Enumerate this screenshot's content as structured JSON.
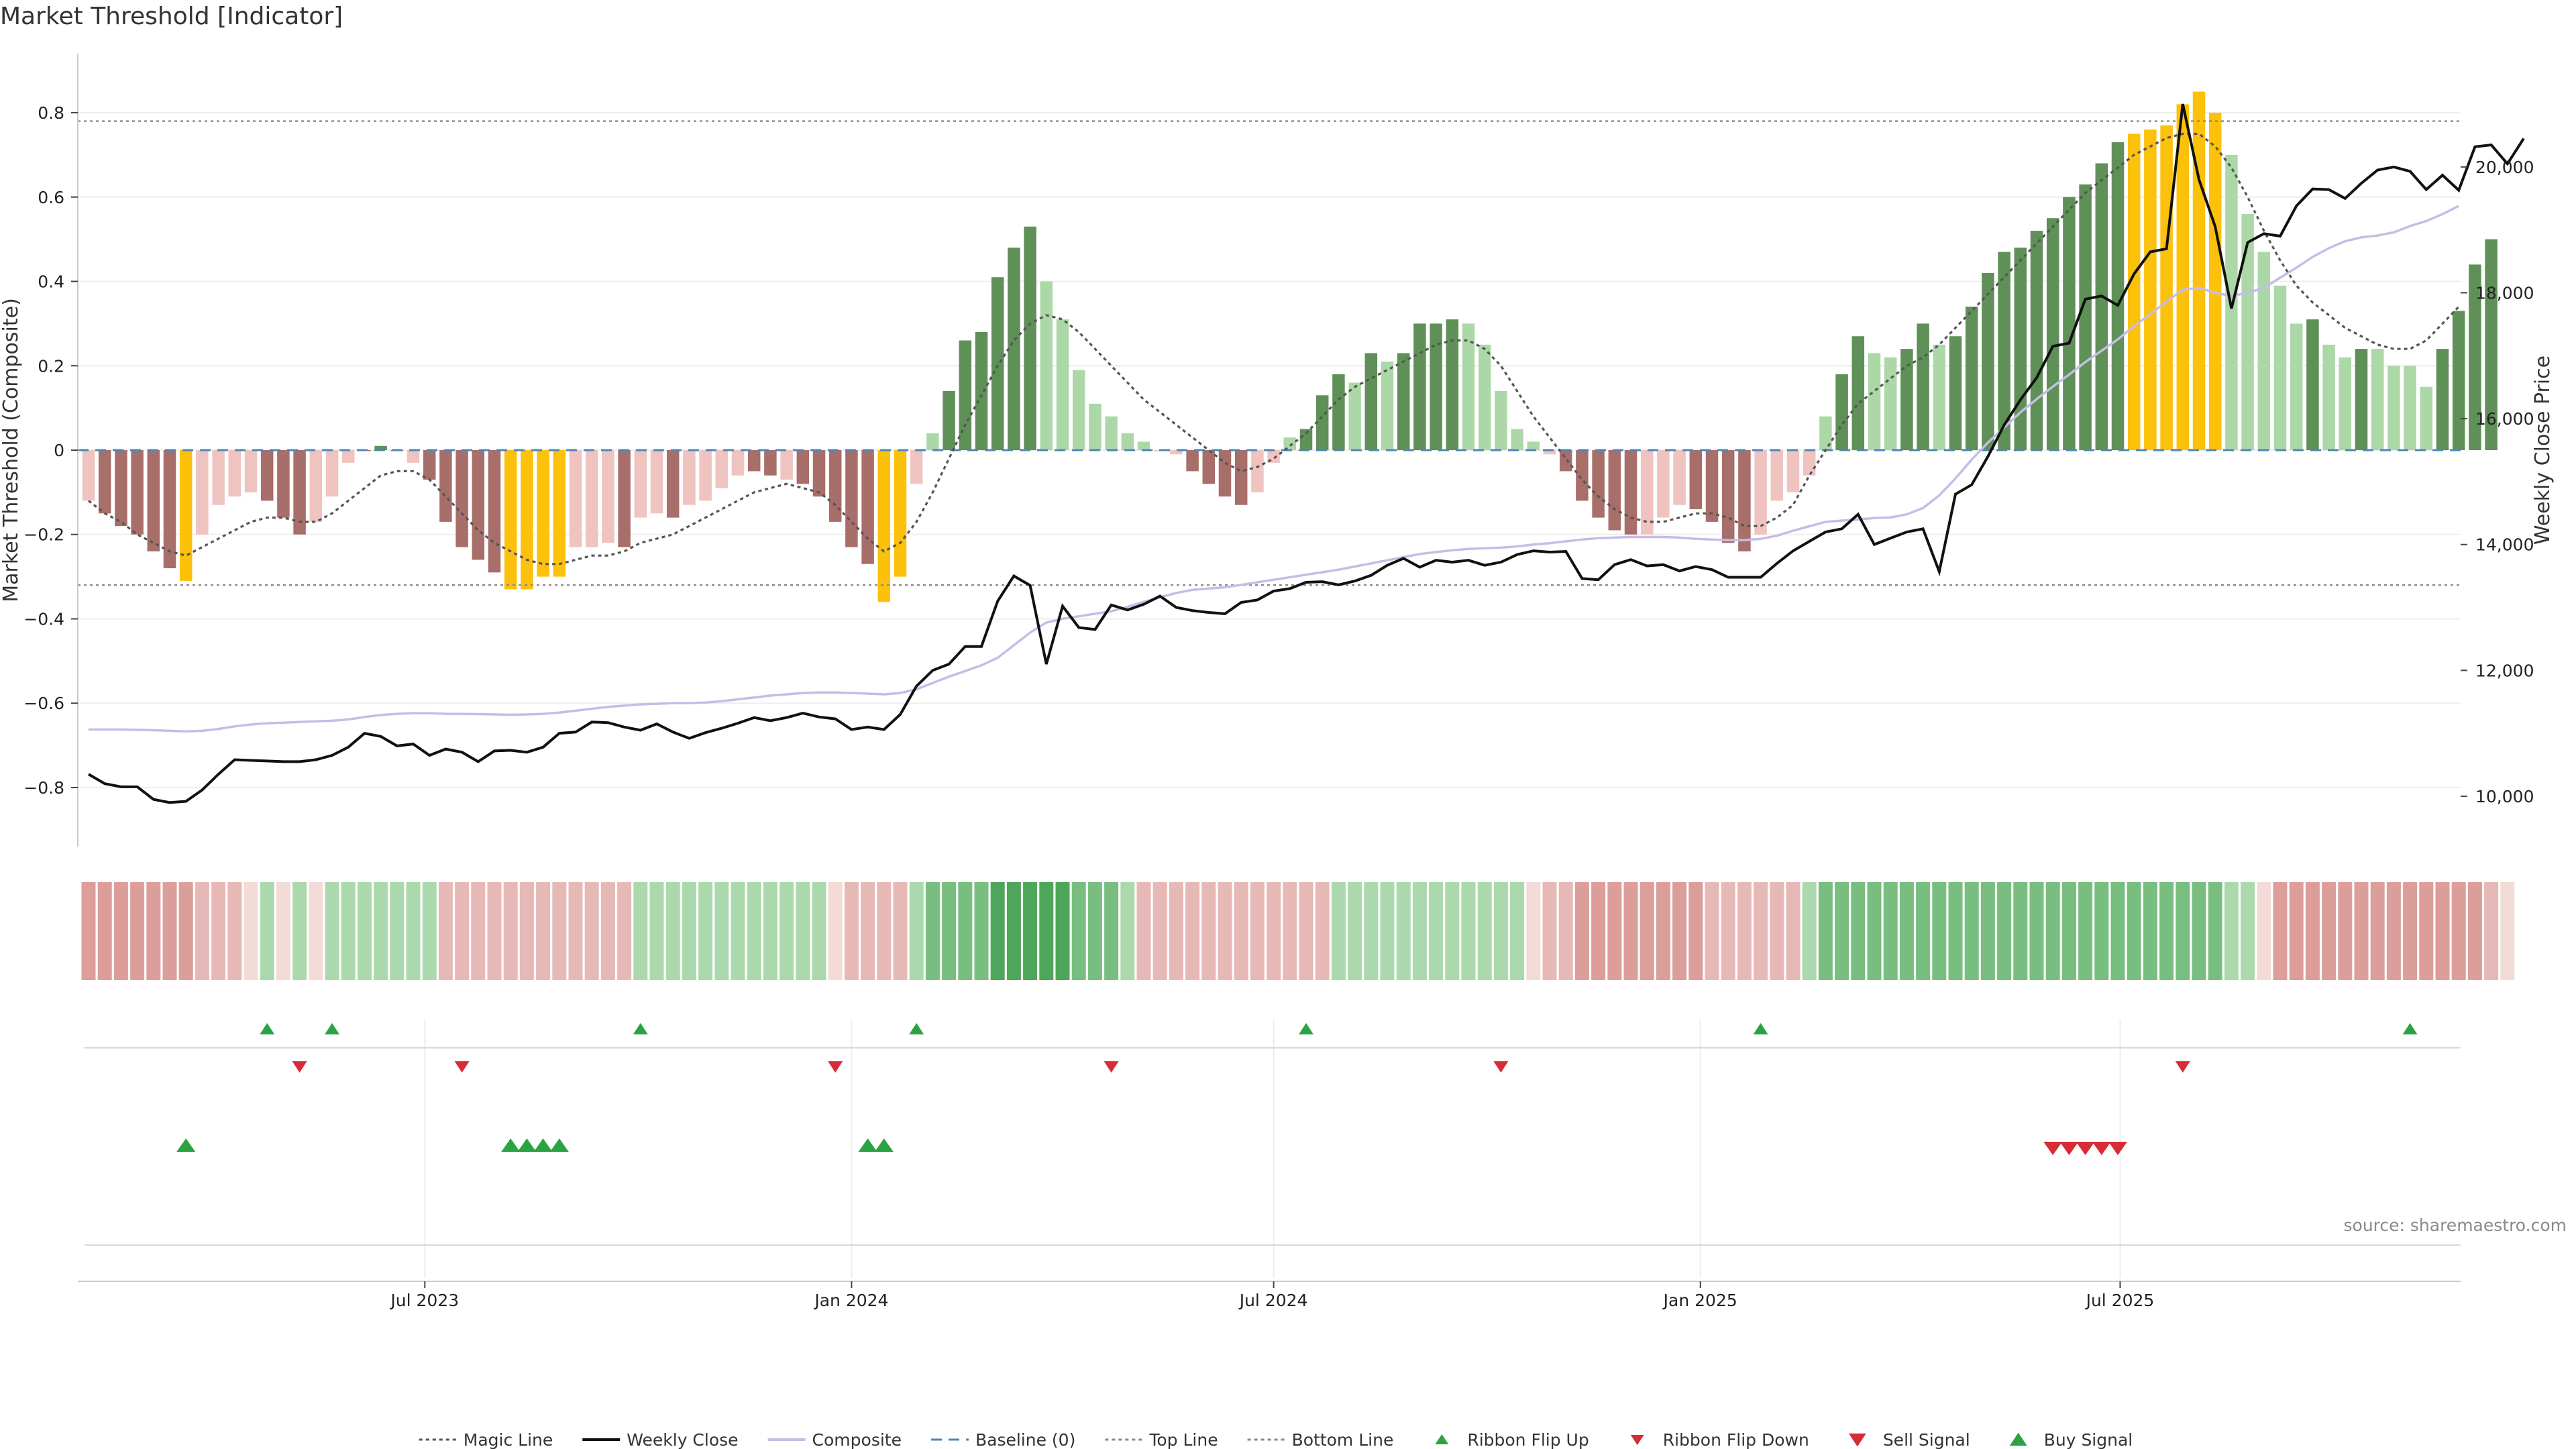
{
  "title": "Market Threshold [Indicator]",
  "source": "source: sharemaestro.com",
  "colors": {
    "bar_weak_neg": "#efc4c0",
    "bar_strong_neg": "#a86e6a",
    "bar_weak_pos": "#acd8a8",
    "bar_strong_pos": "#5e9057",
    "bar_extreme": "#fcc10b",
    "weekly_close": "#111111",
    "composite": "#c5bde6",
    "magic_line": "#555555",
    "baseline": "#4f86b8",
    "threshold_lines": "#8a8a8a",
    "signal_up": "#2ca342",
    "signal_down": "#d62c37"
  },
  "chart_data": {
    "type": "bar",
    "x_start": "2023-02-06",
    "x_step_days": 7,
    "xlabel": "",
    "ylabel_left": "Market Threshold (Composite)",
    "ylabel_right": "Weekly Close Price",
    "ylim_left": [
      -0.94,
      0.94
    ],
    "ylim_right": [
      9200,
      21800
    ],
    "left_ticks": [
      "0.8",
      "0.6",
      "0.4",
      "0.2",
      "0",
      "−0.2",
      "−0.4",
      "−0.6",
      "−0.8"
    ],
    "left_tick_values": [
      0.8,
      0.6,
      0.4,
      0.2,
      0,
      -0.2,
      -0.4,
      -0.6,
      -0.8
    ],
    "right_ticks": [
      "20,000",
      "18,000",
      "16,000",
      "14,000",
      "12,000",
      "10,000"
    ],
    "right_tick_values": [
      20000,
      18000,
      16000,
      14000,
      12000,
      10000
    ],
    "x_ticks": [
      {
        "label": "Jul 2023",
        "date": "2023-07-01"
      },
      {
        "label": "Jan 2024",
        "date": "2024-01-01"
      },
      {
        "label": "Jul 2024",
        "date": "2024-07-01"
      },
      {
        "label": "Jan 2025",
        "date": "2025-01-01"
      },
      {
        "label": "Jul 2025",
        "date": "2025-07-01"
      }
    ],
    "top_line": 0.78,
    "bottom_line": -0.32,
    "composite_bars": [
      -0.12,
      -0.15,
      -0.18,
      -0.2,
      -0.24,
      -0.28,
      -0.31,
      -0.2,
      -0.13,
      -0.11,
      -0.1,
      -0.12,
      -0.16,
      -0.2,
      -0.17,
      -0.11,
      -0.03,
      0,
      0.01,
      0,
      -0.03,
      -0.07,
      -0.17,
      -0.23,
      -0.26,
      -0.29,
      -0.33,
      -0.33,
      -0.3,
      -0.3,
      -0.23,
      -0.23,
      -0.22,
      -0.23,
      -0.16,
      -0.15,
      -0.16,
      -0.13,
      -0.12,
      -0.09,
      -0.06,
      -0.05,
      -0.06,
      -0.07,
      -0.08,
      -0.11,
      -0.17,
      -0.23,
      -0.27,
      -0.36,
      -0.3,
      -0.08,
      0.04,
      0.14,
      0.26,
      0.28,
      0.41,
      0.48,
      0.53,
      0.4,
      0.31,
      0.19,
      0.11,
      0.08,
      0.04,
      0.02,
      0,
      -0.01,
      -0.05,
      -0.08,
      -0.11,
      -0.13,
      -0.1,
      -0.03,
      0.03,
      0.05,
      0.13,
      0.18,
      0.16,
      0.23,
      0.21,
      0.23,
      0.3,
      0.3,
      0.31,
      0.3,
      0.25,
      0.14,
      0.05,
      0.02,
      -0.01,
      -0.05,
      -0.12,
      -0.16,
      -0.19,
      -0.2,
      -0.2,
      -0.16,
      -0.13,
      -0.14,
      -0.17,
      -0.22,
      -0.24,
      -0.2,
      -0.12,
      -0.1,
      -0.06,
      0.08,
      0.18,
      0.27,
      0.23,
      0.22,
      0.24,
      0.3,
      0.25,
      0.27,
      0.34,
      0.42,
      0.47,
      0.48,
      0.52,
      0.55,
      0.6,
      0.63,
      0.68,
      0.73,
      0.75,
      0.76,
      0.77,
      0.82,
      0.85,
      0.8,
      0.7,
      0.56,
      0.47,
      0.39,
      0.3,
      0.31,
      0.25,
      0.22,
      0.24,
      0.24,
      0.2,
      0.2,
      0.15,
      0.24,
      0.33,
      0.44,
      0.5
    ],
    "bar_categories": [
      "weak_neg",
      "strong_neg",
      "strong_neg",
      "strong_neg",
      "strong_neg",
      "strong_neg",
      "extreme",
      "weak_neg",
      "weak_neg",
      "weak_neg",
      "weak_neg",
      "strong_neg",
      "strong_neg",
      "strong_neg",
      "weak_neg",
      "weak_neg",
      "weak_neg",
      "strong_neg",
      "strong_pos",
      "strong_neg",
      "weak_neg",
      "strong_neg",
      "strong_neg",
      "strong_neg",
      "strong_neg",
      "strong_neg",
      "extreme",
      "extreme",
      "extreme",
      "extreme",
      "weak_neg",
      "weak_neg",
      "weak_neg",
      "strong_neg",
      "weak_neg",
      "weak_neg",
      "strong_neg",
      "weak_neg",
      "weak_neg",
      "weak_neg",
      "weak_neg",
      "strong_neg",
      "strong_neg",
      "weak_neg",
      "strong_neg",
      "strong_neg",
      "strong_neg",
      "strong_neg",
      "strong_neg",
      "extreme",
      "extreme",
      "weak_neg",
      "weak_pos",
      "strong_pos",
      "strong_pos",
      "strong_pos",
      "strong_pos",
      "strong_pos",
      "strong_pos",
      "weak_pos",
      "weak_pos",
      "weak_pos",
      "weak_pos",
      "weak_pos",
      "weak_pos",
      "weak_pos",
      "weak_neg",
      "weak_neg",
      "strong_neg",
      "strong_neg",
      "strong_neg",
      "strong_neg",
      "weak_neg",
      "weak_neg",
      "weak_pos",
      "strong_pos",
      "strong_pos",
      "strong_pos",
      "weak_pos",
      "strong_pos",
      "weak_pos",
      "strong_pos",
      "strong_pos",
      "strong_pos",
      "strong_pos",
      "weak_pos",
      "weak_pos",
      "weak_pos",
      "weak_pos",
      "weak_pos",
      "weak_neg",
      "strong_neg",
      "strong_neg",
      "strong_neg",
      "strong_neg",
      "strong_neg",
      "weak_neg",
      "weak_neg",
      "weak_neg",
      "strong_neg",
      "strong_neg",
      "strong_neg",
      "strong_neg",
      "weak_neg",
      "weak_neg",
      "weak_neg",
      "weak_neg",
      "weak_pos",
      "strong_pos",
      "strong_pos",
      "weak_pos",
      "weak_pos",
      "strong_pos",
      "strong_pos",
      "weak_pos",
      "strong_pos",
      "strong_pos",
      "strong_pos",
      "strong_pos",
      "strong_pos",
      "strong_pos",
      "strong_pos",
      "strong_pos",
      "strong_pos",
      "strong_pos",
      "strong_pos",
      "extreme",
      "extreme",
      "extreme",
      "extreme",
      "extreme",
      "extreme",
      "weak_pos",
      "weak_pos",
      "weak_pos",
      "weak_pos",
      "weak_pos",
      "strong_pos",
      "weak_pos",
      "weak_pos",
      "strong_pos",
      "weak_pos",
      "weak_pos",
      "weak_pos",
      "weak_pos",
      "strong_pos",
      "strong_pos",
      "strong_pos",
      "strong_pos"
    ],
    "magic_line": [
      -0.12,
      -0.15,
      -0.17,
      -0.2,
      -0.22,
      -0.24,
      -0.25,
      -0.23,
      -0.21,
      -0.19,
      -0.17,
      -0.16,
      -0.16,
      -0.17,
      -0.17,
      -0.15,
      -0.12,
      -0.09,
      -0.06,
      -0.05,
      -0.05,
      -0.07,
      -0.11,
      -0.15,
      -0.19,
      -0.22,
      -0.24,
      -0.26,
      -0.27,
      -0.27,
      -0.26,
      -0.25,
      -0.25,
      -0.24,
      -0.22,
      -0.21,
      -0.2,
      -0.18,
      -0.16,
      -0.14,
      -0.12,
      -0.1,
      -0.09,
      -0.08,
      -0.09,
      -0.1,
      -0.13,
      -0.17,
      -0.21,
      -0.24,
      -0.22,
      -0.17,
      -0.1,
      -0.02,
      0.06,
      0.13,
      0.2,
      0.26,
      0.3,
      0.32,
      0.31,
      0.28,
      0.24,
      0.2,
      0.16,
      0.12,
      0.09,
      0.06,
      0.03,
      0,
      -0.03,
      -0.05,
      -0.04,
      -0.02,
      0.01,
      0.04,
      0.08,
      0.12,
      0.15,
      0.17,
      0.19,
      0.21,
      0.23,
      0.25,
      0.26,
      0.26,
      0.24,
      0.2,
      0.14,
      0.08,
      0.03,
      -0.02,
      -0.07,
      -0.11,
      -0.14,
      -0.16,
      -0.17,
      -0.17,
      -0.16,
      -0.15,
      -0.15,
      -0.16,
      -0.18,
      -0.18,
      -0.16,
      -0.13,
      -0.06,
      0,
      0.06,
      0.11,
      0.14,
      0.17,
      0.2,
      0.22,
      0.25,
      0.29,
      0.33,
      0.37,
      0.41,
      0.45,
      0.49,
      0.53,
      0.57,
      0.61,
      0.64,
      0.67,
      0.7,
      0.72,
      0.74,
      0.75,
      0.75,
      0.72,
      0.67,
      0.6,
      0.52,
      0.45,
      0.39,
      0.35,
      0.32,
      0.29,
      0.27,
      0.25,
      0.24,
      0.24,
      0.26,
      0.3,
      0.34
    ],
    "weekly_close": [
      10350,
      10200,
      10150,
      10150,
      9950,
      9900,
      9920,
      10100,
      10350,
      10580,
      10570,
      10560,
      10550,
      10550,
      10580,
      10650,
      10780,
      11000,
      10950,
      10800,
      10830,
      10650,
      10750,
      10700,
      10550,
      10720,
      10730,
      10700,
      10780,
      11000,
      11020,
      11180,
      11170,
      11100,
      11050,
      11150,
      11020,
      10920,
      11010,
      11080,
      11160,
      11250,
      11200,
      11250,
      11320,
      11260,
      11230,
      11060,
      11100,
      11060,
      11300,
      11750,
      12000,
      12100,
      12380,
      12380,
      13100,
      13500,
      13350,
      12100,
      13020,
      12680,
      12650,
      13040,
      12960,
      13050,
      13180,
      13000,
      12950,
      12920,
      12900,
      13080,
      13120,
      13260,
      13300,
      13400,
      13410,
      13360,
      13420,
      13510,
      13670,
      13780,
      13640,
      13750,
      13720,
      13750,
      13670,
      13720,
      13840,
      13900,
      13880,
      13890,
      13460,
      13440,
      13680,
      13760,
      13660,
      13680,
      13580,
      13650,
      13600,
      13480,
      13480,
      13480,
      13700,
      13900,
      14050,
      14200,
      14250,
      14480,
      14000,
      14100,
      14200,
      14250,
      13570,
      14800,
      14950,
      15400,
      15900,
      16300,
      16650,
      17150,
      17200,
      17900,
      17950,
      17800,
      18300,
      18650,
      18700,
      21000,
      19800,
      19050,
      17750,
      18800,
      18940,
      18900,
      19380,
      19650,
      19640,
      19500,
      19740,
      19950,
      20000,
      19930,
      19640,
      19870,
      19630,
      20320,
      20350,
      20050,
      20450
    ],
    "composite_line": [
      11060,
      11060,
      11060,
      11055,
      11050,
      11040,
      11030,
      11040,
      11070,
      11110,
      11140,
      11160,
      11170,
      11180,
      11190,
      11200,
      11220,
      11260,
      11290,
      11310,
      11320,
      11320,
      11310,
      11310,
      11305,
      11300,
      11295,
      11300,
      11310,
      11330,
      11360,
      11390,
      11420,
      11440,
      11460,
      11470,
      11480,
      11480,
      11490,
      11510,
      11540,
      11570,
      11600,
      11620,
      11640,
      11650,
      11650,
      11640,
      11630,
      11620,
      11640,
      11700,
      11800,
      11900,
      11990,
      12080,
      12200,
      12400,
      12600,
      12760,
      12820,
      12860,
      12900,
      12940,
      13010,
      13090,
      13160,
      13230,
      13280,
      13300,
      13320,
      13360,
      13400,
      13440,
      13480,
      13520,
      13560,
      13600,
      13650,
      13700,
      13750,
      13800,
      13850,
      13880,
      13910,
      13930,
      13940,
      13950,
      13970,
      14000,
      14020,
      14050,
      14080,
      14100,
      14110,
      14120,
      14120,
      14120,
      14110,
      14090,
      14080,
      14070,
      14070,
      14090,
      14140,
      14220,
      14290,
      14360,
      14380,
      14400,
      14420,
      14430,
      14480,
      14580,
      14780,
      15050,
      15350,
      15620,
      15860,
      16100,
      16310,
      16510,
      16700,
      16900,
      17080,
      17260,
      17470,
      17660,
      17860,
      18050,
      18080,
      18000,
      17950,
      18000,
      18080,
      18240,
      18400,
      18570,
      18710,
      18820,
      18880,
      18910,
      18960,
      19060,
      19140,
      19250,
      19380
    ],
    "ribbon": [
      2,
      2,
      2,
      2,
      2,
      2,
      2,
      1,
      1,
      1,
      0,
      -1,
      0,
      -1,
      0,
      -1,
      -1,
      -1,
      -1,
      -1,
      -1,
      -1,
      1,
      1,
      1,
      1,
      1,
      1,
      1,
      1,
      1,
      1,
      1,
      1,
      -1,
      -1,
      -1,
      -1,
      -1,
      -1,
      -1,
      -1,
      -1,
      -1,
      -1,
      -1,
      0,
      1,
      1,
      1,
      1,
      -1,
      -2,
      -2,
      -2,
      -2,
      -3,
      -3,
      -3,
      -3,
      -3,
      -2,
      -2,
      -2,
      -1,
      1,
      1,
      1,
      1,
      1,
      1,
      1,
      1,
      1,
      1,
      1,
      1,
      -1,
      -1,
      -1,
      -1,
      -1,
      -1,
      -1,
      -1,
      -1,
      -1,
      -1,
      -1,
      0,
      1,
      1,
      2,
      2,
      2,
      2,
      2,
      2,
      2,
      2,
      1,
      1,
      1,
      1,
      1,
      1,
      -1,
      -2,
      -2,
      -2,
      -2,
      -2,
      -2,
      -2,
      -2,
      -2,
      -2,
      -2,
      -2,
      -2,
      -2,
      -2,
      -2,
      -2,
      -2,
      -2,
      -2,
      -2,
      -2,
      -2,
      -2,
      -2,
      -1,
      -1,
      0,
      2,
      2,
      2,
      2,
      2,
      2,
      2,
      2,
      2,
      2,
      2,
      2,
      2,
      1,
      0
    ],
    "ribbon_flip_up": [
      11,
      15,
      34,
      51,
      75,
      103,
      143
    ],
    "ribbon_flip_down": [
      13,
      23,
      46,
      63,
      87,
      129
    ],
    "buy_signal": [
      6,
      26,
      27,
      28,
      29,
      48,
      49
    ],
    "sell_signal": [
      121,
      122,
      123,
      124,
      125
    ],
    "legend": [
      {
        "label": "Magic Line",
        "key": "magic_line",
        "kind": "dotted"
      },
      {
        "label": "Weekly Close",
        "key": "weekly_close",
        "kind": "line"
      },
      {
        "label": "Composite",
        "key": "composite",
        "kind": "line"
      },
      {
        "label": "Baseline (0)",
        "key": "baseline",
        "kind": "dashed"
      },
      {
        "label": "Top Line",
        "key": "threshold_lines",
        "kind": "dotted"
      },
      {
        "label": "Bottom Line",
        "key": "threshold_lines",
        "kind": "dotted"
      },
      {
        "label": "Ribbon Flip Up",
        "key": "signal_up",
        "kind": "tri-up-small"
      },
      {
        "label": "Ribbon Flip Down",
        "key": "signal_down",
        "kind": "tri-down-small"
      },
      {
        "label": "Sell Signal",
        "key": "signal_down",
        "kind": "tri-down"
      },
      {
        "label": "Buy Signal",
        "key": "signal_up",
        "kind": "tri-up"
      }
    ],
    "legend_position": "bottom-center"
  }
}
